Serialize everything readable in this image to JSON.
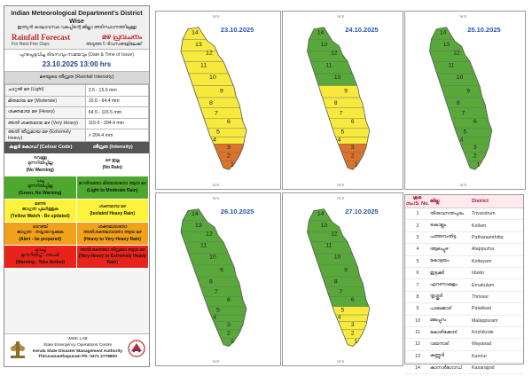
{
  "header": {
    "title": "Indian Meteorological Department's District Wise",
    "subtitle_ml": "ഇന്ത്യൻ കാലാവസ്ഥ വകുപ്പിന്റെ ജില്ലാ അടിസ്ഥാനത്തിലുള്ള",
    "forecast_en": "Rainfall Forecast",
    "forecast_ml": "മഴ പ്രവചനം",
    "days_en": "For Next Five Days",
    "days_ml": "അടുത്ത 5 ദിവസങ്ങളിലേക്ക്"
  },
  "issue": {
    "label": "പുറപ്പെടുവിച്ച ദിവസവും സമയവും (Date & Time of Issue)",
    "datetime": "23.10.2025 13:00 hrs"
  },
  "intensity": {
    "heading": "മഴയുടെ തീവ്രത (Rainfall Intensity)",
    "rows": [
      {
        "label": "ചാറ്റൽ മഴ (Light)",
        "range": "2.5 - 15.5 mm"
      },
      {
        "label": "മിതമായ മഴ (Moderate)",
        "range": "15.6 - 64.4 mm"
      },
      {
        "label": "ശക്തമായ മഴ (Heavy)",
        "range": "64.5 - 115.5 mm"
      },
      {
        "label": "അതി ശക്തമായ മഴ (Very Heavy)",
        "range": "115.6 - 204.4 mm"
      },
      {
        "label": "അതി തീവ്രമായ മഴ (Extremely Heavy)",
        "range": "> 204.4 mm"
      }
    ]
  },
  "colour_code": {
    "head_left": "കളർ കോഡ് (Colour Code)",
    "head_right": "തീവ്രത (Intensity)",
    "rows": [
      {
        "bg": "#ffffff",
        "l_ml": "വെള്ള",
        "l_ml2": "മുന്നറിയിപ്പില്ല",
        "l_en": "(No Warning)",
        "r_ml": "മഴ ഇല്ല",
        "r_en": "(No Rain)"
      },
      {
        "bg": "#4fa82e",
        "l_ml": "പച്ച",
        "l_ml2": "മുന്നറിയിപ്പില്ല",
        "l_en": "(Green, No Warning)",
        "r_ml": "നേരിയതോ മിതമായതോ ആയ മഴ",
        "r_en": "(Light to Moderate Rain)"
      },
      {
        "bg": "#fff23a",
        "l_ml": "മഞ്ഞ",
        "l_ml2": "ജാഗ്രത പുലർത്തുക",
        "l_en": "(Yellow Watch - Be updated)",
        "r_ml": "ശക്തമായ മഴ",
        "r_en": "(Isolated Heavy Rain)"
      },
      {
        "bg": "#f2a11c",
        "l_ml": "ഓറഞ്ച്",
        "l_ml2": "ജാഗ്രത - തയ്യാറെടുക്കുക",
        "l_en": "(Alert - be prepared)",
        "r_ml": "ശക്തമായതോ അതിശക്തമായതോ ആയ മഴ",
        "r_en": "(Heavy to Very Heavy Rain)"
      },
      {
        "bg": "#e8231a",
        "l_ml": "ചുവപ്പ്",
        "l_ml2": "മുന്നറിയിപ്പ് - നടപടി",
        "l_en": "(Warning - Take Action)",
        "r_ml": "അതിശക്തമോ തീവ്രമോ ആയ മഴ",
        "r_en": "(Very Heavy to Extremely Heavy Rain)"
      }
    ]
  },
  "footer": {
    "line1": "IMSK LAB",
    "line2": "State Emergency Operations Centre",
    "line3": "Kerala State Disaster Management Authority",
    "line4": "Thiruvananthapuram Ph: 0471 2778800"
  },
  "maps": [
    {
      "date": "23.10.2025",
      "colors": [
        "#d9742a",
        "#d9742a",
        "#d9742a",
        "#f7ea3d",
        "#f7ea3d",
        "#f7ea3d",
        "#f7ea3d",
        "#f7ea3d",
        "#f7ea3d",
        "#f7ea3d",
        "#f7ea3d",
        "#f7ea3d",
        "#f7ea3d",
        "#f7ea3d"
      ]
    },
    {
      "date": "24.10.2025",
      "colors": [
        "#d9742a",
        "#d9742a",
        "#d9742a",
        "#f7ea3d",
        "#f7ea3d",
        "#f7ea3d",
        "#f7ea3d",
        "#f7ea3d",
        "#f7ea3d",
        "#58a83a",
        "#58a83a",
        "#58a83a",
        "#58a83a",
        "#58a83a"
      ]
    },
    {
      "date": "25.10.2025",
      "colors": [
        "#58a83a",
        "#58a83a",
        "#58a83a",
        "#58a83a",
        "#58a83a",
        "#58a83a",
        "#58a83a",
        "#58a83a",
        "#58a83a",
        "#58a83a",
        "#58a83a",
        "#58a83a",
        "#58a83a",
        "#58a83a"
      ]
    },
    {
      "date": "26.10.2025",
      "colors": [
        "#58a83a",
        "#58a83a",
        "#58a83a",
        "#58a83a",
        "#58a83a",
        "#58a83a",
        "#58a83a",
        "#58a83a",
        "#58a83a",
        "#58a83a",
        "#58a83a",
        "#58a83a",
        "#58a83a",
        "#58a83a"
      ]
    },
    {
      "date": "27.10.2025",
      "colors": [
        "#f7ea3d",
        "#f7ea3d",
        "#f7ea3d",
        "#f7ea3d",
        "#f7ea3d",
        "#58a83a",
        "#58a83a",
        "#58a83a",
        "#58a83a",
        "#58a83a",
        "#58a83a",
        "#58a83a",
        "#58a83a",
        "#58a83a"
      ]
    }
  ],
  "districts": {
    "head": {
      "no": "ക്രമ. നം./S. No.",
      "ml": "ജില്ല",
      "en": "District"
    },
    "rows": [
      {
        "no": "1",
        "ml": "തിരുവനന്തപുരം",
        "en": "Trivandrum"
      },
      {
        "no": "2",
        "ml": "കൊല്ലം",
        "en": "Kollam"
      },
      {
        "no": "3",
        "ml": "പത്തനംതിട്ട",
        "en": "Pathanamthitta"
      },
      {
        "no": "4",
        "ml": "ആലപ്പുഴ",
        "en": "Alappuzha"
      },
      {
        "no": "5",
        "ml": "കോട്ടയം",
        "en": "Kottayam"
      },
      {
        "no": "6",
        "ml": "ഇടുക്കി",
        "en": "Idukki"
      },
      {
        "no": "7",
        "ml": "എറണാകുളം",
        "en": "Ernakulam"
      },
      {
        "no": "8",
        "ml": "തൃശ്ശൂർ",
        "en": "Thrissur"
      },
      {
        "no": "9",
        "ml": "പാലക്കാട്",
        "en": "Palakkad"
      },
      {
        "no": "10",
        "ml": "മലപ്പുറം",
        "en": "Malappuram"
      },
      {
        "no": "11",
        "ml": "കോഴിക്കോട്",
        "en": "Kozhikode"
      },
      {
        "no": "12",
        "ml": "വയനാട്",
        "en": "Wayanad"
      },
      {
        "no": "13",
        "ml": "കണ്ണൂർ",
        "en": "Kannur"
      },
      {
        "no": "14",
        "ml": "കാസർഗോഡ്",
        "en": "Kasaragod"
      }
    ]
  }
}
